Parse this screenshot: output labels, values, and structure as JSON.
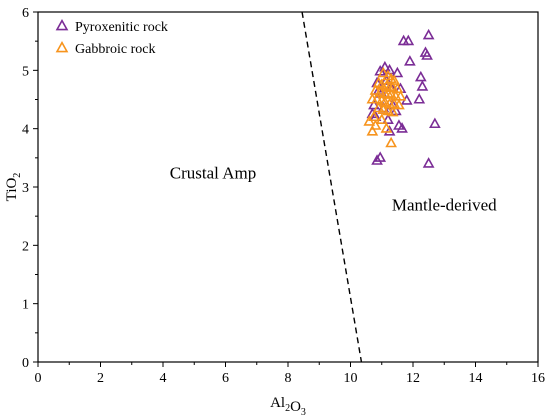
{
  "chart_data": {
    "type": "scatter",
    "xlim": [
      0,
      16
    ],
    "ylim": [
      0,
      6
    ],
    "x_ticks": [
      0,
      2,
      4,
      6,
      8,
      10,
      12,
      14,
      16
    ],
    "y_ticks": [
      0,
      1,
      2,
      3,
      4,
      5,
      6
    ],
    "x_tick_labels": [
      "0",
      "2",
      "4",
      "6",
      "8",
      "10",
      "12",
      "14",
      "16"
    ],
    "y_tick_labels": [
      "0",
      "1",
      "2",
      "3",
      "4",
      "5",
      "6"
    ],
    "xlabel": "Al2O3",
    "ylabel": "TiO2",
    "grid": false,
    "legend_position": "top-left",
    "annotations": [
      {
        "text": "Crustal Amp",
        "x": 5.6,
        "y": 3.15
      },
      {
        "text": "Mantle-derived",
        "x": 13.0,
        "y": 2.6
      }
    ],
    "divider_line": {
      "x1": 8.45,
      "y1": 6.0,
      "x2": 10.35,
      "y2": 0.0,
      "style": "dashed"
    },
    "series": [
      {
        "name": "Pyroxenitic rock",
        "color": "#7B2D96",
        "marker": "triangle",
        "x": [
          12.5,
          11.7,
          11.85,
          12.4,
          12.45,
          11.9,
          11.1,
          10.95,
          11.25,
          11.5,
          12.25,
          11.15,
          10.85,
          12.3,
          11.3,
          10.9,
          11.6,
          11.0,
          12.2,
          11.8,
          11.35,
          10.75,
          11.05,
          11.45,
          10.8,
          12.7,
          11.55,
          11.2,
          10.7,
          11.65,
          11.25,
          10.95,
          10.85,
          12.5
        ],
        "y": [
          5.6,
          5.5,
          5.5,
          5.3,
          5.25,
          5.15,
          5.05,
          4.98,
          5.0,
          4.95,
          4.88,
          4.82,
          4.78,
          4.72,
          4.7,
          4.65,
          4.68,
          4.6,
          4.5,
          4.48,
          4.4,
          4.4,
          4.35,
          4.3,
          4.2,
          4.08,
          4.05,
          4.15,
          4.25,
          4.0,
          3.95,
          3.5,
          3.45,
          3.4
        ]
      },
      {
        "name": "Gabbroic rock",
        "color": "#F7941D",
        "marker": "triangle",
        "x": [
          11.05,
          11.2,
          11.3,
          11.4,
          10.9,
          11.0,
          11.15,
          11.25,
          11.35,
          11.5,
          10.8,
          10.95,
          11.1,
          11.2,
          11.3,
          11.45,
          11.6,
          10.7,
          10.85,
          11.0,
          11.1,
          11.25,
          11.4,
          11.55,
          10.9,
          11.05,
          11.2,
          11.35,
          10.75,
          11.0,
          10.6,
          10.8,
          11.15,
          10.7,
          11.3
        ],
        "y": [
          4.95,
          4.9,
          4.85,
          4.82,
          4.78,
          4.75,
          4.72,
          4.7,
          4.7,
          4.68,
          4.65,
          4.62,
          4.6,
          4.6,
          4.58,
          4.55,
          4.55,
          4.5,
          4.5,
          4.48,
          4.45,
          4.42,
          4.42,
          4.4,
          4.35,
          4.32,
          4.3,
          4.28,
          4.2,
          4.15,
          4.12,
          4.05,
          4.0,
          3.95,
          3.75
        ]
      }
    ]
  }
}
